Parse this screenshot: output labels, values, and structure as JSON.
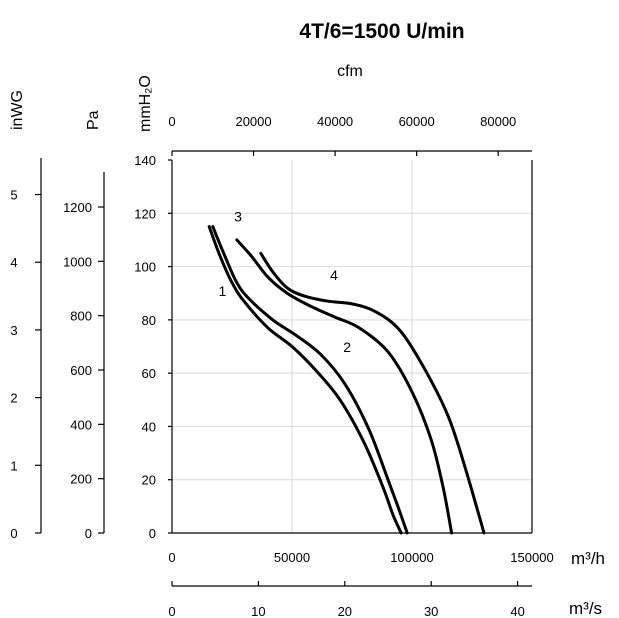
{
  "chart_data": {
    "type": "line",
    "title": "4T/6=1500 U/min",
    "x_axis_bottom": {
      "label": "m³/h",
      "range": [
        0,
        150000
      ],
      "ticks": [
        0,
        50000,
        100000,
        150000
      ],
      "tick_labels": [
        "0",
        "50000",
        "100000",
        "150000"
      ]
    },
    "x_axis_ms": {
      "label": "m³/s",
      "range": [
        0,
        41.667
      ],
      "ticks": [
        0,
        10,
        20,
        30,
        40
      ],
      "tick_labels": [
        "0",
        "10",
        "20",
        "30",
        "40"
      ]
    },
    "x_axis_top": {
      "label": "cfm",
      "range": [
        0,
        88287
      ],
      "ticks": [
        0,
        20000,
        40000,
        60000,
        80000
      ],
      "tick_labels": [
        "0",
        "20000",
        "40000",
        "60000",
        "80000"
      ]
    },
    "y_axis_mmh2o": {
      "label": "mmH₂O",
      "range": [
        0,
        140
      ],
      "ticks": [
        0,
        20,
        40,
        60,
        80,
        100,
        120,
        140
      ],
      "tick_labels": [
        "0",
        "20",
        "40",
        "60",
        "80",
        "100",
        "120",
        "140"
      ]
    },
    "y_axis_pa": {
      "label": "Pa",
      "range": [
        0,
        1373
      ],
      "ticks": [
        0,
        200,
        400,
        600,
        800,
        1000,
        1200
      ],
      "tick_labels": [
        "0",
        "200",
        "400",
        "600",
        "800",
        "1000",
        "1200"
      ]
    },
    "y_axis_inwg": {
      "label": "inWG",
      "range": [
        0,
        5.51
      ],
      "ticks": [
        0,
        1,
        2,
        3,
        4,
        5
      ],
      "tick_labels": [
        "0",
        "1",
        "2",
        "3",
        "4",
        "5"
      ]
    },
    "grid": true,
    "series": [
      {
        "name": "1",
        "x": [
          15500,
          20000,
          25000,
          30000,
          40000,
          50000,
          60000,
          70000,
          80000,
          88000,
          92000,
          95500
        ],
        "y": [
          115,
          104,
          94,
          87,
          77,
          70,
          61,
          50,
          34,
          17,
          7,
          0
        ]
      },
      {
        "name": "2",
        "x": [
          17000,
          22000,
          27000,
          32000,
          42000,
          52000,
          62000,
          72000,
          82000,
          90000,
          94500,
          98000
        ],
        "y": [
          115,
          104,
          94,
          88,
          80,
          74,
          67,
          56,
          39,
          20,
          9,
          0
        ]
      },
      {
        "name": "3",
        "x": [
          27000,
          33000,
          40000,
          48000,
          58000,
          68000,
          78000,
          90000,
          100000,
          108000,
          113000,
          116500
        ],
        "y": [
          110,
          104,
          96,
          90,
          85,
          81,
          77,
          68,
          53,
          35,
          17,
          0
        ]
      },
      {
        "name": "4",
        "x": [
          37000,
          42000,
          48000,
          55000,
          65000,
          75000,
          85000,
          95000,
          105000,
          115000,
          122000,
          130000
        ],
        "y": [
          105,
          98,
          92,
          89,
          87,
          86,
          83,
          76,
          62,
          44,
          25,
          0
        ]
      }
    ],
    "curve_labels": [
      {
        "text": "1",
        "x": 21000,
        "y": 89
      },
      {
        "text": "2",
        "x": 73000,
        "y": 68
      },
      {
        "text": "3",
        "x": 27500,
        "y": 117
      },
      {
        "text": "4",
        "x": 67500,
        "y": 95
      }
    ]
  }
}
